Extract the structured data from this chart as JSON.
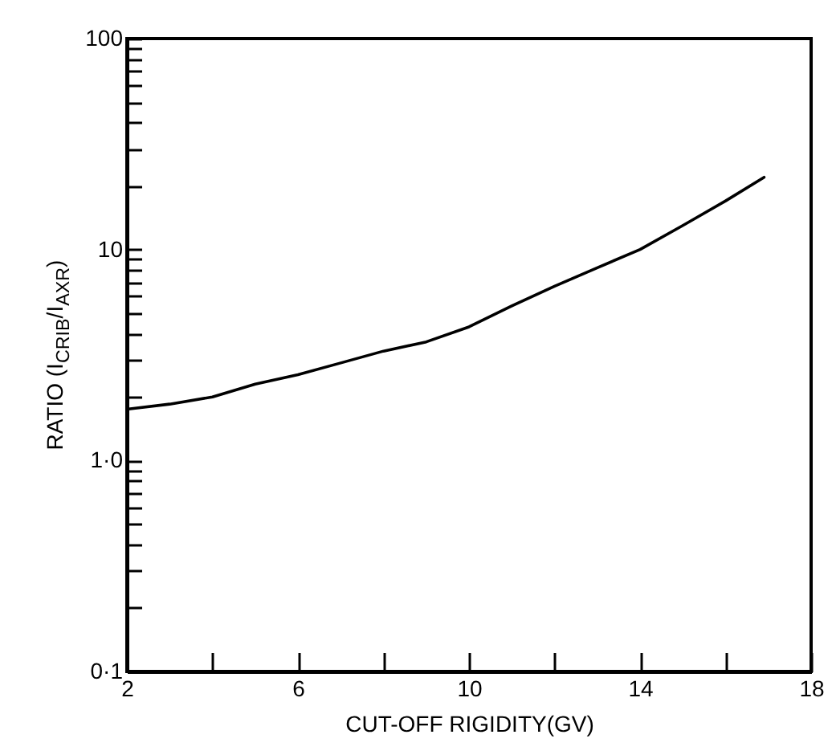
{
  "chart_data": {
    "type": "line",
    "xlabel": "CUT-OFF RIGIDITY(GV)",
    "ylabel": "RATIO (I$_{CRIB}$/I$_{AXR}$)",
    "x": [
      2,
      3,
      4,
      5,
      6,
      7,
      8,
      9,
      10,
      11,
      12,
      13,
      14,
      15,
      16,
      16.9
    ],
    "series": [
      {
        "color": "#000000",
        "values": [
          1.75,
          1.85,
          2.0,
          2.3,
          2.55,
          2.9,
          3.3,
          3.65,
          4.3,
          5.4,
          6.7,
          8.2,
          10,
          13,
          17,
          22
        ]
      }
    ],
    "log": "y",
    "xlim": [
      2,
      18
    ],
    "ylim": [
      0.1,
      100
    ],
    "xticks": [
      2,
      {
        "value": 4,
        "label": null
      },
      6,
      {
        "value": 8,
        "label": null
      },
      10,
      {
        "value": 12,
        "label": null
      },
      14,
      {
        "value": 16,
        "label": null
      },
      18
    ],
    "yticks": [
      {
        "value": 0.1,
        "label": "0·1"
      },
      {
        "value": 0.2,
        "label": null
      },
      {
        "value": 0.3,
        "label": null
      },
      {
        "value": 0.4,
        "label": null
      },
      {
        "value": 0.5,
        "label": null
      },
      {
        "value": 0.6,
        "label": null
      },
      {
        "value": 0.7,
        "label": null
      },
      {
        "value": 0.8,
        "label": null
      },
      {
        "value": 0.9,
        "label": null
      },
      {
        "value": 1,
        "label": "1·0"
      },
      {
        "value": 2,
        "label": null
      },
      {
        "value": 3,
        "label": null
      },
      {
        "value": 4,
        "label": null
      },
      {
        "value": 5,
        "label": null
      },
      {
        "value": 6,
        "label": null
      },
      {
        "value": 7,
        "label": null
      },
      {
        "value": 8,
        "label": null
      },
      {
        "value": 9,
        "label": null
      },
      10,
      {
        "value": 20,
        "label": null
      },
      {
        "value": 30,
        "label": null
      },
      {
        "value": 40,
        "label": null
      },
      {
        "value": 50,
        "label": null
      },
      {
        "value": 60,
        "label": null
      },
      {
        "value": 70,
        "label": null
      },
      {
        "value": 80,
        "label": null
      },
      {
        "value": 90,
        "label": null
      },
      100
    ],
    "grid": false,
    "marker": "none",
    "line_style": "solid"
  }
}
